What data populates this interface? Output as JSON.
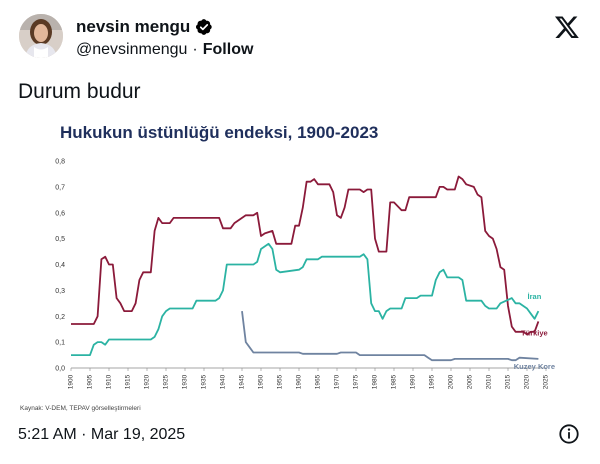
{
  "tweet": {
    "display_name": "nevsin mengu",
    "handle": "@nevsinmengu",
    "separator": "·",
    "follow_label": "Follow",
    "text": "Durum budur",
    "timestamp": "5:21 AM · Mar 19, 2025",
    "icons": {
      "verified": "verified-badge-icon",
      "logo": "x-logo-icon",
      "info": "info-icon"
    },
    "colors": {
      "text": "#0f1419",
      "verified": "#000000"
    }
  },
  "chart_data": {
    "type": "line",
    "title": "Hukukun üstünlüğü endeksi, 1900-2023",
    "source": "Kaynak: V-DEM, TEPAV görselleştirmeleri",
    "xlim": [
      1900,
      2025
    ],
    "ylim": [
      0,
      0.8
    ],
    "x_ticks": [
      "1900",
      "1905",
      "1910",
      "1915",
      "1920",
      "1925",
      "1930",
      "1935",
      "1940",
      "1945",
      "1950",
      "1955",
      "1960",
      "1965",
      "1970",
      "1975",
      "1980",
      "1985",
      "1990",
      "1995",
      "2000",
      "2005",
      "2010",
      "2015",
      "2020",
      "2025"
    ],
    "y_ticks": [
      "0,0",
      "0,1",
      "0,2",
      "0,3",
      "0,4",
      "0,5",
      "0,6",
      "0,7",
      "0,8"
    ],
    "grid": false,
    "series": [
      {
        "name": "Türkiye",
        "color": "#8b1a3a",
        "points": [
          [
            1900,
            0.17
          ],
          [
            1906,
            0.17
          ],
          [
            1907,
            0.2
          ],
          [
            1908,
            0.42
          ],
          [
            1909,
            0.43
          ],
          [
            1910,
            0.4
          ],
          [
            1911,
            0.4
          ],
          [
            1912,
            0.27
          ],
          [
            1913,
            0.25
          ],
          [
            1914,
            0.22
          ],
          [
            1916,
            0.22
          ],
          [
            1917,
            0.25
          ],
          [
            1918,
            0.34
          ],
          [
            1919,
            0.37
          ],
          [
            1921,
            0.37
          ],
          [
            1922,
            0.53
          ],
          [
            1923,
            0.58
          ],
          [
            1924,
            0.56
          ],
          [
            1926,
            0.56
          ],
          [
            1927,
            0.58
          ],
          [
            1939,
            0.58
          ],
          [
            1940,
            0.54
          ],
          [
            1942,
            0.54
          ],
          [
            1943,
            0.56
          ],
          [
            1945,
            0.58
          ],
          [
            1946,
            0.59
          ],
          [
            1948,
            0.59
          ],
          [
            1949,
            0.6
          ],
          [
            1950,
            0.51
          ],
          [
            1951,
            0.52
          ],
          [
            1953,
            0.53
          ],
          [
            1954,
            0.48
          ],
          [
            1958,
            0.48
          ],
          [
            1959,
            0.55
          ],
          [
            1960,
            0.55
          ],
          [
            1961,
            0.62
          ],
          [
            1962,
            0.72
          ],
          [
            1963,
            0.72
          ],
          [
            1964,
            0.73
          ],
          [
            1965,
            0.71
          ],
          [
            1968,
            0.71
          ],
          [
            1969,
            0.68
          ],
          [
            1970,
            0.59
          ],
          [
            1971,
            0.58
          ],
          [
            1972,
            0.62
          ],
          [
            1973,
            0.69
          ],
          [
            1976,
            0.69
          ],
          [
            1977,
            0.68
          ],
          [
            1978,
            0.69
          ],
          [
            1979,
            0.69
          ],
          [
            1980,
            0.5
          ],
          [
            1981,
            0.45
          ],
          [
            1983,
            0.45
          ],
          [
            1984,
            0.64
          ],
          [
            1985,
            0.64
          ],
          [
            1987,
            0.61
          ],
          [
            1988,
            0.61
          ],
          [
            1989,
            0.66
          ],
          [
            1990,
            0.66
          ],
          [
            1996,
            0.66
          ],
          [
            1997,
            0.7
          ],
          [
            1998,
            0.7
          ],
          [
            1999,
            0.69
          ],
          [
            2001,
            0.69
          ],
          [
            2002,
            0.74
          ],
          [
            2003,
            0.73
          ],
          [
            2004,
            0.71
          ],
          [
            2006,
            0.7
          ],
          [
            2007,
            0.67
          ],
          [
            2008,
            0.66
          ],
          [
            2009,
            0.53
          ],
          [
            2010,
            0.51
          ],
          [
            2011,
            0.5
          ],
          [
            2012,
            0.46
          ],
          [
            2013,
            0.39
          ],
          [
            2014,
            0.38
          ],
          [
            2015,
            0.24
          ],
          [
            2016,
            0.16
          ],
          [
            2017,
            0.14
          ],
          [
            2018,
            0.14
          ],
          [
            2019,
            0.14
          ],
          [
            2020,
            0.13
          ],
          [
            2021,
            0.14
          ],
          [
            2022,
            0.14
          ],
          [
            2023,
            0.18
          ]
        ]
      },
      {
        "name": "İran",
        "color": "#2bb3a3",
        "points": [
          [
            1900,
            0.05
          ],
          [
            1905,
            0.05
          ],
          [
            1906,
            0.09
          ],
          [
            1907,
            0.1
          ],
          [
            1908,
            0.1
          ],
          [
            1909,
            0.09
          ],
          [
            1910,
            0.11
          ],
          [
            1920,
            0.11
          ],
          [
            1921,
            0.11
          ],
          [
            1922,
            0.12
          ],
          [
            1923,
            0.15
          ],
          [
            1924,
            0.2
          ],
          [
            1925,
            0.22
          ],
          [
            1926,
            0.23
          ],
          [
            1932,
            0.23
          ],
          [
            1933,
            0.26
          ],
          [
            1938,
            0.26
          ],
          [
            1939,
            0.27
          ],
          [
            1940,
            0.3
          ],
          [
            1941,
            0.4
          ],
          [
            1948,
            0.4
          ],
          [
            1949,
            0.41
          ],
          [
            1950,
            0.46
          ],
          [
            1952,
            0.48
          ],
          [
            1953,
            0.46
          ],
          [
            1954,
            0.38
          ],
          [
            1955,
            0.37
          ],
          [
            1960,
            0.38
          ],
          [
            1961,
            0.39
          ],
          [
            1962,
            0.42
          ],
          [
            1965,
            0.42
          ],
          [
            1966,
            0.43
          ],
          [
            1976,
            0.43
          ],
          [
            1977,
            0.44
          ],
          [
            1978,
            0.42
          ],
          [
            1979,
            0.25
          ],
          [
            1980,
            0.22
          ],
          [
            1981,
            0.22
          ],
          [
            1982,
            0.19
          ],
          [
            1983,
            0.22
          ],
          [
            1984,
            0.23
          ],
          [
            1987,
            0.23
          ],
          [
            1988,
            0.27
          ],
          [
            1991,
            0.27
          ],
          [
            1992,
            0.28
          ],
          [
            1995,
            0.28
          ],
          [
            1996,
            0.34
          ],
          [
            1997,
            0.37
          ],
          [
            1998,
            0.38
          ],
          [
            1999,
            0.35
          ],
          [
            2002,
            0.35
          ],
          [
            2003,
            0.34
          ],
          [
            2004,
            0.26
          ],
          [
            2008,
            0.26
          ],
          [
            2009,
            0.24
          ],
          [
            2010,
            0.23
          ],
          [
            2012,
            0.23
          ],
          [
            2013,
            0.25
          ],
          [
            2016,
            0.27
          ],
          [
            2017,
            0.25
          ],
          [
            2018,
            0.25
          ],
          [
            2019,
            0.24
          ],
          [
            2020,
            0.23
          ],
          [
            2021,
            0.21
          ],
          [
            2022,
            0.19
          ],
          [
            2023,
            0.22
          ]
        ]
      },
      {
        "name": "Kuzey Kore",
        "color": "#6f83a0",
        "points": [
          [
            1945,
            0.22
          ],
          [
            1946,
            0.1
          ],
          [
            1947,
            0.08
          ],
          [
            1948,
            0.06
          ],
          [
            1952,
            0.06
          ],
          [
            1953,
            0.06
          ],
          [
            1955,
            0.06
          ],
          [
            1960,
            0.06
          ],
          [
            1961,
            0.055
          ],
          [
            1970,
            0.055
          ],
          [
            1971,
            0.06
          ],
          [
            1975,
            0.06
          ],
          [
            1976,
            0.05
          ],
          [
            1993,
            0.05
          ],
          [
            1994,
            0.04
          ],
          [
            1995,
            0.03
          ],
          [
            2000,
            0.03
          ],
          [
            2001,
            0.035
          ],
          [
            2015,
            0.035
          ],
          [
            2016,
            0.03
          ],
          [
            2017,
            0.03
          ],
          [
            2018,
            0.04
          ],
          [
            2023,
            0.035
          ]
        ]
      }
    ]
  }
}
